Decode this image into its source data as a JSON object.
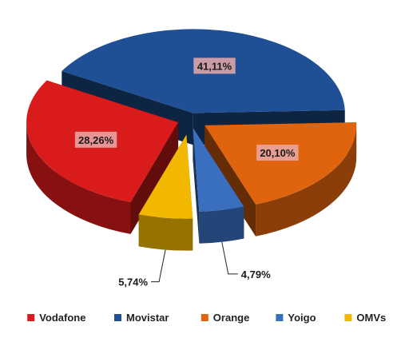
{
  "chart_data": {
    "type": "pie",
    "style": "3d-exploded",
    "title": "",
    "categories": [
      "Movistar",
      "Orange",
      "Yoigo",
      "OMVs",
      "Vodafone"
    ],
    "values": [
      41.11,
      20.1,
      4.79,
      5.74,
      28.26
    ],
    "value_labels": [
      "41,11%",
      "20,10%",
      "4,79%",
      "5,74%",
      "28,26%"
    ],
    "colors": [
      "#1f4f94",
      "#e0640d",
      "#3a6fc0",
      "#f2b800",
      "#d91b1b"
    ],
    "legend": {
      "position": "bottom",
      "items": [
        {
          "label": "Vodafone",
          "color": "#d91b1b"
        },
        {
          "label": "Movistar",
          "color": "#1f4f94"
        },
        {
          "label": "Orange",
          "color": "#e0640d"
        },
        {
          "label": "Yoigo",
          "color": "#3a6fc0"
        },
        {
          "label": "OMVs",
          "color": "#f2b800"
        }
      ]
    }
  }
}
